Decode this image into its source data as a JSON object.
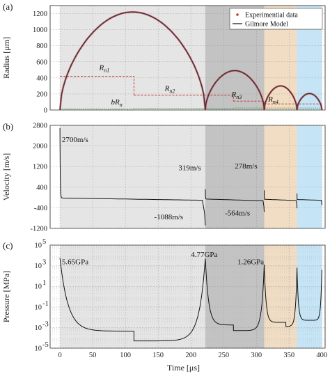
{
  "chart_data": [
    {
      "panel_label": "(a)",
      "type": "line",
      "ylabel": "Radius [μm]",
      "xlim": [
        -15,
        405
      ],
      "ylim": [
        0,
        1300
      ],
      "yticks": [
        0,
        200,
        400,
        600,
        800,
        1000,
        1200
      ],
      "legend": {
        "placement": "top-right",
        "entries": [
          {
            "name": "Experimential data",
            "color": "#c0392b",
            "marker": "dot"
          },
          {
            "name": "Gilmore Model",
            "color": "#111111",
            "marker": "line"
          }
        ]
      },
      "shaded_regions": [
        {
          "x": [
            0,
            222
          ],
          "color": "#e2e2e2"
        },
        {
          "x": [
            222,
            312
          ],
          "color": "#bdbdbd"
        },
        {
          "x": [
            312,
            362
          ],
          "color": "#efd9bd"
        },
        {
          "x": [
            362,
            400
          ],
          "color": "#bfe2f6"
        }
      ],
      "radius_curve": [
        {
          "t0": 0,
          "t1": 222,
          "peak": 1220
        },
        {
          "t0": 222,
          "t1": 312,
          "peak": 490
        },
        {
          "t0": 312,
          "t1": 362,
          "peak": 300
        },
        {
          "t0": 362,
          "t1": 400,
          "peak": 205
        }
      ],
      "rn_steps": [
        {
          "x": [
            0,
            113
          ],
          "y": 420
        },
        {
          "x": [
            113,
            265
          ],
          "y": 185
        },
        {
          "x": [
            265,
            312
          ],
          "y": 110
        },
        {
          "x": [
            312,
            400
          ],
          "y": 75
        }
      ],
      "bR_steps": [
        {
          "x": [
            0,
            113
          ],
          "y": 12
        },
        {
          "x": [
            113,
            265
          ],
          "y": 18
        },
        {
          "x": [
            265,
            400
          ],
          "y": 25
        }
      ],
      "annotations": [
        {
          "base": "R",
          "sub": "n1",
          "x": 60,
          "y": 500
        },
        {
          "base": "R",
          "sub": "n2",
          "x": 160,
          "y": 240
        },
        {
          "base": "bR",
          "sub": "n",
          "x": 78,
          "y": 70
        },
        {
          "base": "R",
          "sub": "n3",
          "x": 262,
          "y": 165
        },
        {
          "base": "R",
          "sub": "n4",
          "x": 318,
          "y": 105
        }
      ]
    },
    {
      "panel_label": "(b)",
      "type": "line",
      "ylabel": "Velocity [m/s]",
      "xlim": [
        -15,
        405
      ],
      "ylim": [
        -1200,
        2800
      ],
      "yticks": [
        -1200,
        -400,
        400,
        1200,
        2000,
        2800
      ],
      "shaded_regions": [
        {
          "x": [
            0,
            222
          ],
          "color": "#e2e2e2"
        },
        {
          "x": [
            222,
            312
          ],
          "color": "#bdbdbd"
        },
        {
          "x": [
            312,
            362
          ],
          "color": "#efd9bd"
        },
        {
          "x": [
            362,
            400
          ],
          "color": "#bfe2f6"
        }
      ],
      "velocity_segments": [
        {
          "t0": 0,
          "t1": 222,
          "v_start": 2700,
          "v_plateau_start": -20,
          "v_plateau_end": -110,
          "v_end": -1088
        },
        {
          "t0": 222,
          "t1": 312,
          "v_start": 319,
          "v_plateau_start": -60,
          "v_plateau_end": -130,
          "v_end": -564
        },
        {
          "t0": 312,
          "t1": 362,
          "v_start": 278,
          "v_plateau_start": -70,
          "v_plateau_end": -120,
          "v_end": -420
        },
        {
          "t0": 362,
          "t1": 400,
          "v_start": 160,
          "v_plateau_start": -80,
          "v_plateau_end": -110,
          "v_end": -300
        }
      ],
      "annotations": [
        {
          "text": "2700m/s",
          "x": 3,
          "y": 2150
        },
        {
          "text": "319m/s",
          "x": 181,
          "y": 1060
        },
        {
          "text": "278m/s",
          "x": 267,
          "y": 1120
        },
        {
          "text": "-1088m/s",
          "x": 144,
          "y": -850
        },
        {
          "text": "-564m/s",
          "x": 252,
          "y": -700
        }
      ]
    },
    {
      "panel_label": "(c)",
      "type": "line",
      "xlabel": "Time [μs]",
      "ylabel": "Pressure [MPa]",
      "yscale": "log",
      "xlim": [
        -15,
        405
      ],
      "ylim_exponent": [
        -5,
        5
      ],
      "yticks_exponent": [
        -5,
        -3,
        -1,
        1,
        3,
        5
      ],
      "xticks": [
        0,
        50,
        100,
        150,
        200,
        250,
        300,
        350,
        400
      ],
      "shaded_regions": [
        {
          "x": [
            0,
            222
          ],
          "color": "#e2e2e2"
        },
        {
          "x": [
            222,
            312
          ],
          "color": "#bdbdbd"
        },
        {
          "x": [
            312,
            362
          ],
          "color": "#efd9bd"
        },
        {
          "x": [
            362,
            400
          ],
          "color": "#bfe2f6"
        }
      ],
      "pressure_segments_log10": [
        {
          "t0": 0,
          "t1": 222,
          "peak": 3.75,
          "min": -3.35,
          "step_at": 113,
          "step_to": -4.3,
          "end": 3.68
        },
        {
          "t0": 222,
          "t1": 312,
          "peak": 3.68,
          "min": -2.75,
          "step_at": 265,
          "step_to": -3.3,
          "end": 3.1
        },
        {
          "t0": 312,
          "t1": 362,
          "peak": 3.1,
          "min": -2.5,
          "step_at": 345,
          "step_to": -2.9,
          "end": 2.8
        },
        {
          "t0": 362,
          "t1": 400,
          "peak": 2.8,
          "min": -2.3,
          "end": 2.6
        }
      ],
      "annotations": [
        {
          "text": "5.65GPa",
          "x": 3,
          "y_exp": 3.15
        },
        {
          "text": "4.77GPa",
          "x": 200,
          "y_exp": 3.85
        },
        {
          "text": "1.26GPa",
          "x": 271,
          "y_exp": 3.15
        }
      ]
    }
  ]
}
